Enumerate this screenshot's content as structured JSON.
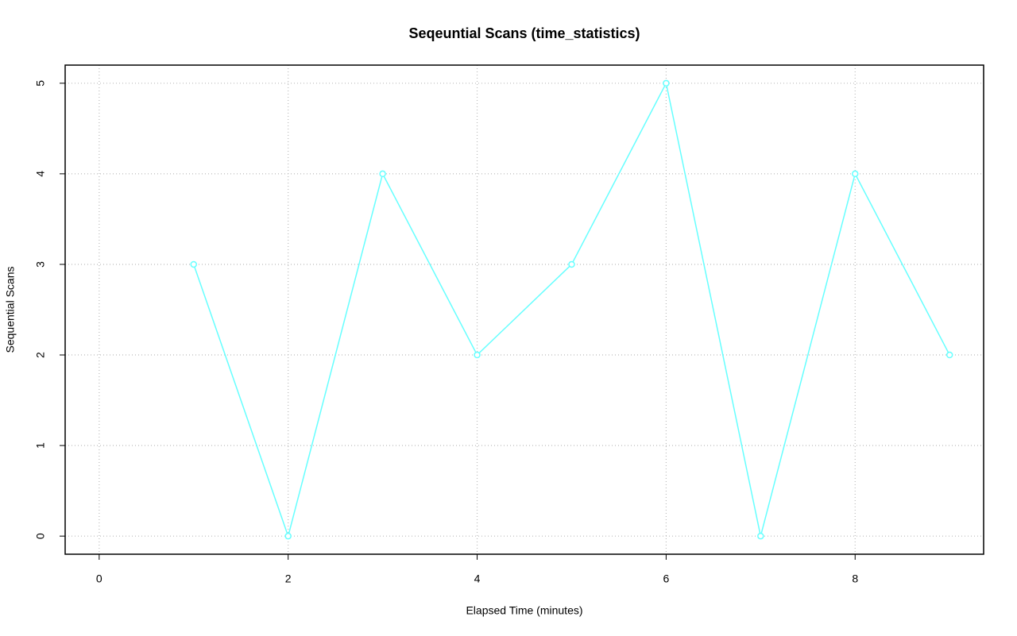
{
  "chart_data": {
    "type": "line",
    "title": "Seqeuntial Scans (time_statistics)",
    "x_label": "Elapsed Time (minutes)",
    "y_label": "Sequential Scans",
    "series": [
      {
        "color": "#66ffff",
        "x": [
          1,
          2,
          3,
          4,
          5,
          6,
          7,
          8,
          9
        ],
        "values": [
          3,
          0,
          4,
          2,
          3,
          5,
          0,
          4,
          2
        ]
      }
    ],
    "xlim": [
      -0.36,
      9.36
    ],
    "xticks": [
      0,
      2,
      4,
      6,
      8
    ],
    "ylim": [
      -0.2,
      5.2
    ],
    "yticks": [
      0,
      1,
      2,
      3,
      4,
      5
    ],
    "grid": true
  }
}
